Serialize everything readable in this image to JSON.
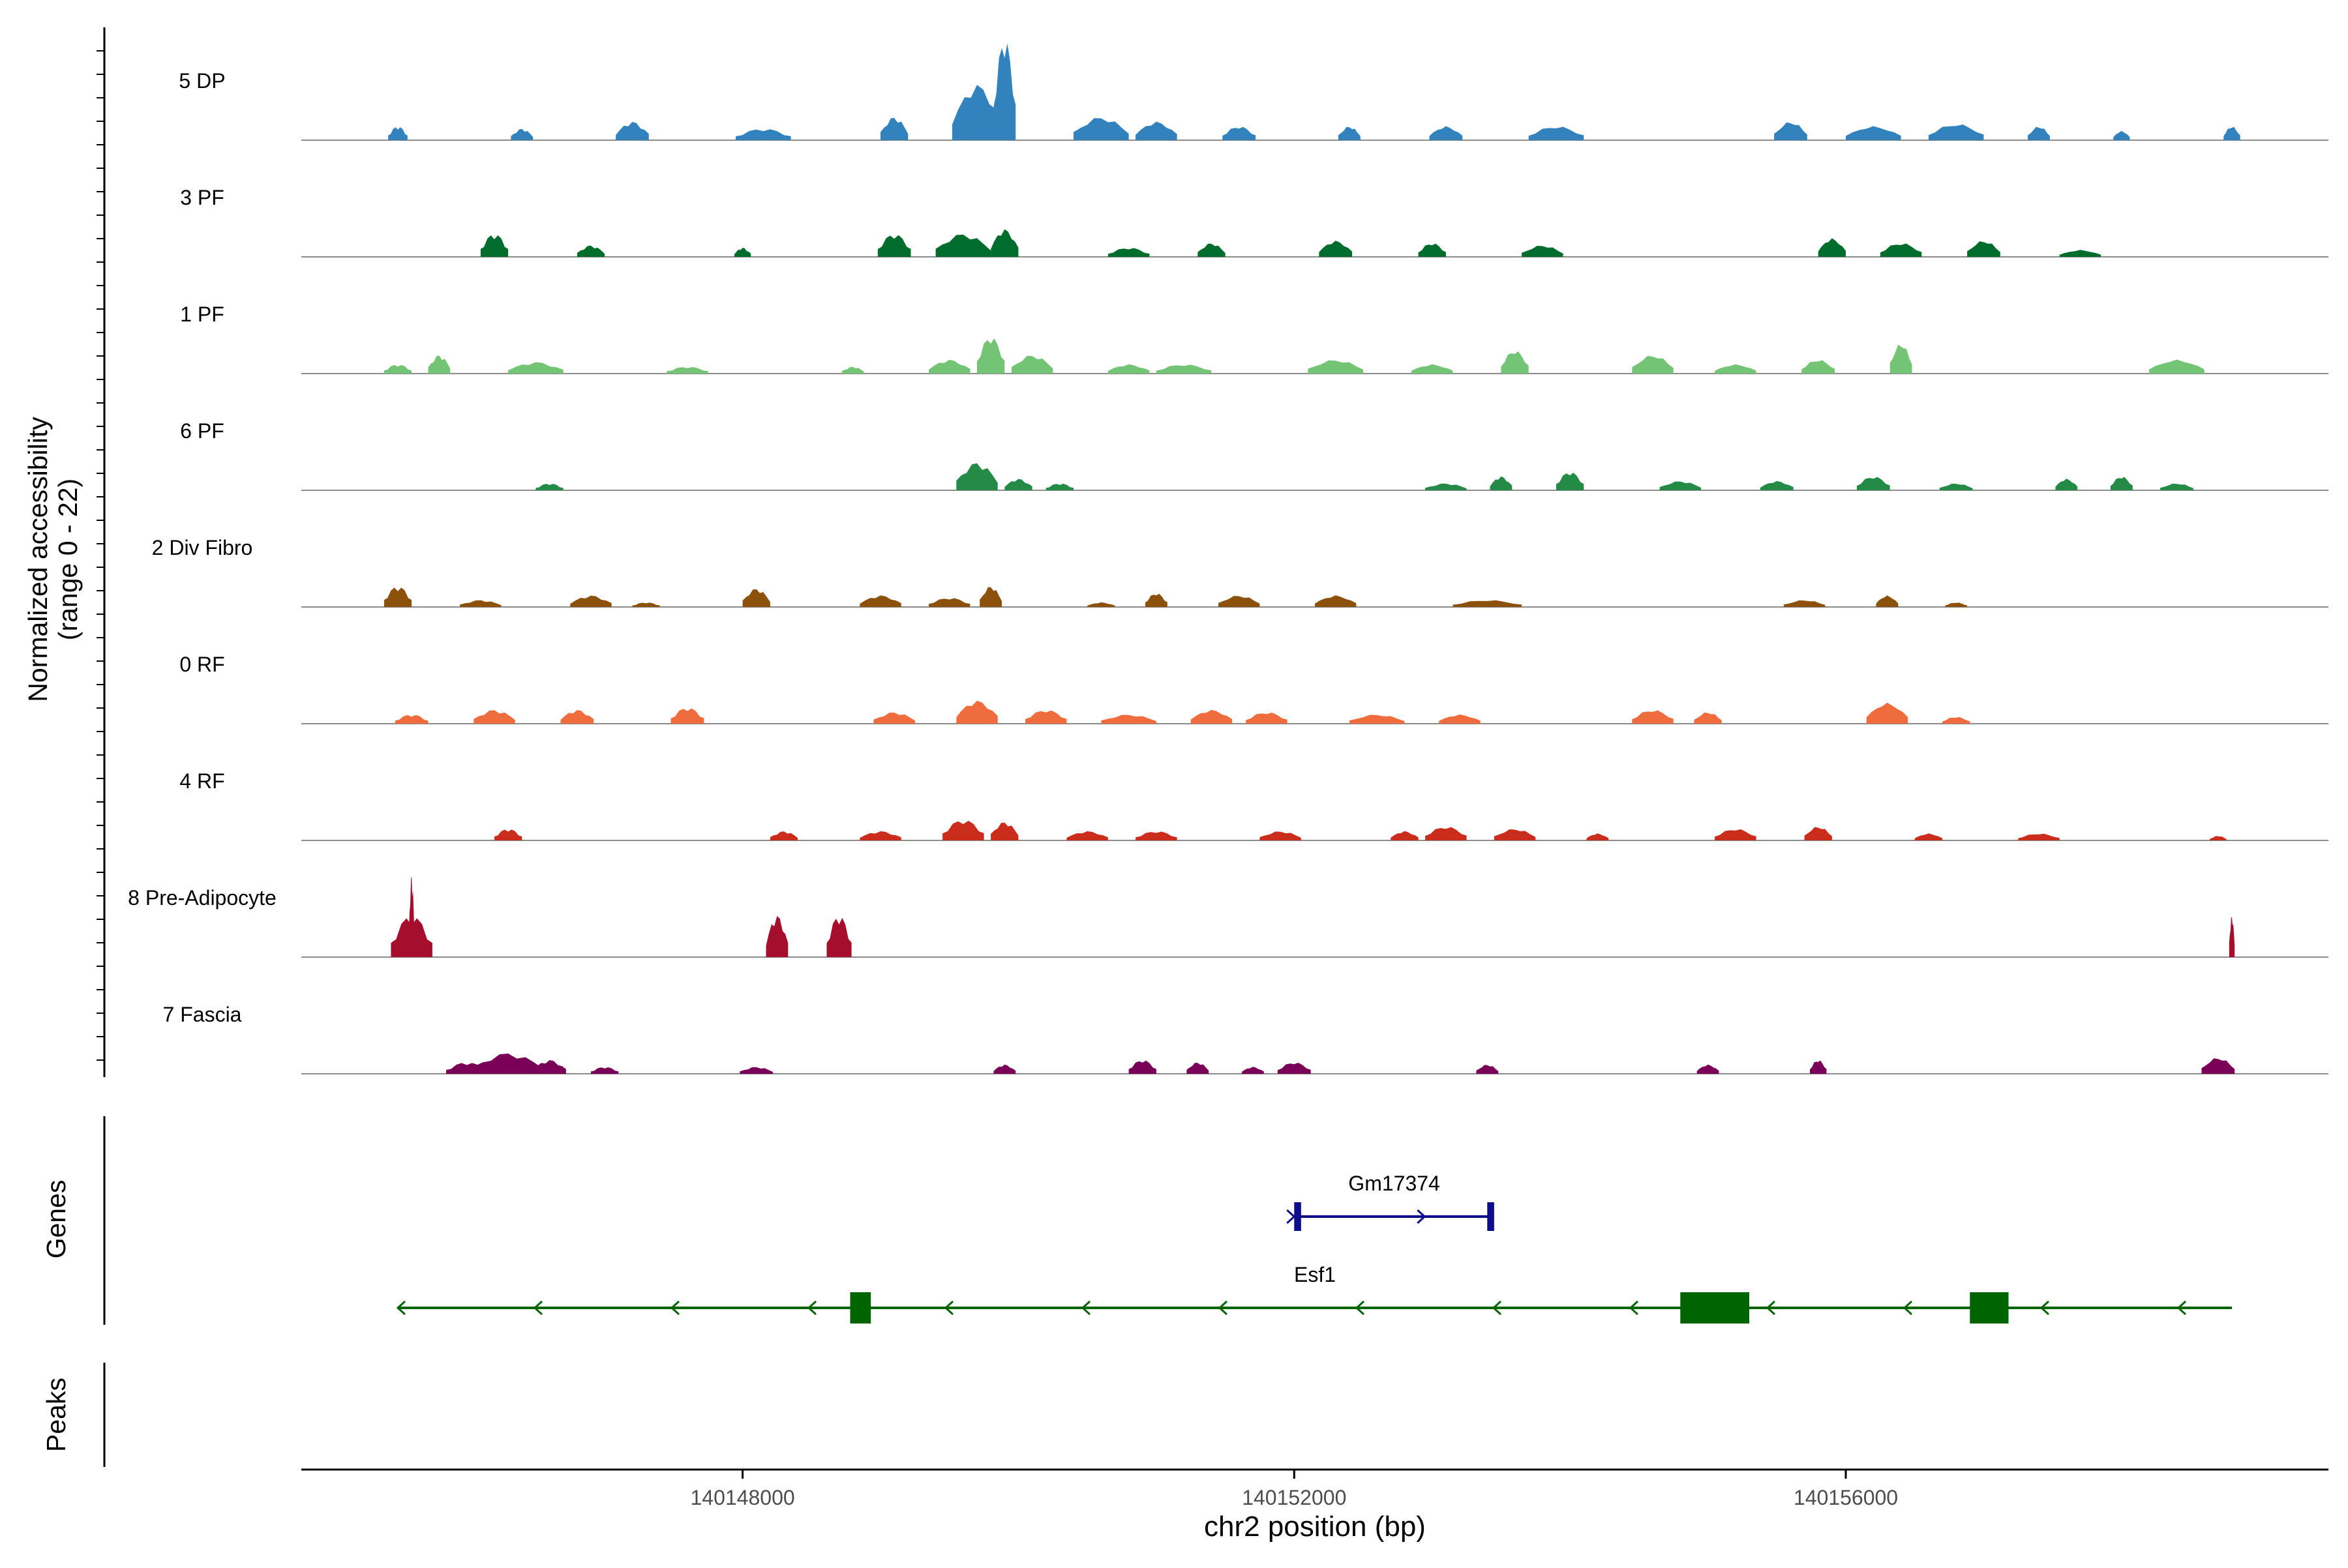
{
  "chart_data": {
    "type": "area",
    "title": "",
    "xlabel": "chr2 position (bp)",
    "ylabel_line1": "Normalized accessibility",
    "ylabel_line2": "(range 0 - 22)",
    "ylim": [
      0,
      22
    ],
    "xlim": [
      140144800,
      140159500
    ],
    "x_ticks": [
      140148000,
      140152000,
      140156000
    ],
    "x_tick_labels": [
      "140148000",
      "140152000",
      "140156000"
    ],
    "genes_panel_label": "Genes",
    "peaks_panel_label": "Peaks",
    "series": [
      {
        "name": "5 DP",
        "color": "#3182bd",
        "peaks": [
          [
            140145500,
            70,
            3
          ],
          [
            140146400,
            80,
            2.5
          ],
          [
            140147200,
            120,
            4
          ],
          [
            140148150,
            200,
            2.5
          ],
          [
            140149100,
            100,
            5
          ],
          [
            140149700,
            180,
            12
          ],
          [
            140149900,
            80,
            22
          ],
          [
            140150600,
            200,
            5
          ],
          [
            140151000,
            150,
            4
          ],
          [
            140151600,
            120,
            3
          ],
          [
            140152400,
            80,
            3
          ],
          [
            140153100,
            120,
            3
          ],
          [
            140153900,
            200,
            3
          ],
          [
            140155600,
            120,
            4
          ],
          [
            140156200,
            200,
            3
          ],
          [
            140156800,
            200,
            3.5
          ],
          [
            140157400,
            80,
            3
          ],
          [
            140158000,
            60,
            2
          ],
          [
            140158800,
            60,
            3
          ]
        ]
      },
      {
        "name": "3 PF",
        "color": "#006d2c",
        "peaks": [
          [
            140146200,
            100,
            5
          ],
          [
            140146900,
            100,
            2.5
          ],
          [
            140148000,
            60,
            2
          ],
          [
            140149100,
            120,
            5
          ],
          [
            140149600,
            200,
            5
          ],
          [
            140149900,
            100,
            6
          ],
          [
            140150800,
            150,
            2
          ],
          [
            140151400,
            100,
            3
          ],
          [
            140152300,
            120,
            3.5
          ],
          [
            140153000,
            100,
            3
          ],
          [
            140153800,
            150,
            2.5
          ],
          [
            140155900,
            100,
            4
          ],
          [
            140156400,
            150,
            3
          ],
          [
            140157000,
            120,
            3.5
          ],
          [
            140157700,
            150,
            1.5
          ]
        ]
      },
      {
        "name": "1 PF",
        "color": "#74c476",
        "peaks": [
          [
            140145500,
            100,
            2
          ],
          [
            140145800,
            80,
            4
          ],
          [
            140146500,
            200,
            2.5
          ],
          [
            140147600,
            150,
            1.5
          ],
          [
            140148800,
            80,
            1.5
          ],
          [
            140149500,
            150,
            3
          ],
          [
            140149800,
            100,
            8
          ],
          [
            140150100,
            150,
            4
          ],
          [
            140150800,
            150,
            2
          ],
          [
            140151200,
            200,
            2
          ],
          [
            140152300,
            200,
            3
          ],
          [
            140153000,
            150,
            2
          ],
          [
            140153600,
            100,
            5
          ],
          [
            140154600,
            150,
            4
          ],
          [
            140155200,
            150,
            2
          ],
          [
            140155800,
            120,
            3
          ],
          [
            140156400,
            80,
            6.5
          ],
          [
            140158400,
            200,
            3
          ]
        ]
      },
      {
        "name": "6 PF",
        "color": "#238b45",
        "peaks": [
          [
            140146600,
            100,
            1.5
          ],
          [
            140149700,
            150,
            6
          ],
          [
            140150000,
            100,
            2.5
          ],
          [
            140150300,
            100,
            1.5
          ],
          [
            140153100,
            150,
            1.5
          ],
          [
            140153500,
            80,
            3
          ],
          [
            140154000,
            100,
            4
          ],
          [
            140154800,
            150,
            2
          ],
          [
            140155500,
            120,
            2
          ],
          [
            140156200,
            120,
            3
          ],
          [
            140156800,
            120,
            1.5
          ],
          [
            140157600,
            80,
            2.5
          ],
          [
            140158000,
            80,
            3
          ],
          [
            140158400,
            120,
            1.5
          ]
        ]
      },
      {
        "name": "2 Div Fibro",
        "color": "#8c510a",
        "peaks": [
          [
            140145500,
            100,
            4.5
          ],
          [
            140146100,
            150,
            1.5
          ],
          [
            140146900,
            150,
            2.5
          ],
          [
            140147300,
            100,
            1
          ],
          [
            140148100,
            100,
            4
          ],
          [
            140149000,
            150,
            2.5
          ],
          [
            140149500,
            150,
            2
          ],
          [
            140149800,
            80,
            4.5
          ],
          [
            140150600,
            100,
            1
          ],
          [
            140151000,
            80,
            3
          ],
          [
            140151600,
            150,
            2.5
          ],
          [
            140152300,
            150,
            2.5
          ],
          [
            140153400,
            250,
            1.5
          ],
          [
            140155700,
            150,
            1.5
          ],
          [
            140156300,
            80,
            2.5
          ],
          [
            140156800,
            80,
            1
          ]
        ]
      },
      {
        "name": "0 RF",
        "color": "#ef6c3f",
        "peaks": [
          [
            140145600,
            120,
            2
          ],
          [
            140146200,
            150,
            3
          ],
          [
            140146800,
            120,
            3
          ],
          [
            140147600,
            120,
            3.5
          ],
          [
            140149100,
            150,
            2.5
          ],
          [
            140149700,
            150,
            5
          ],
          [
            140150200,
            150,
            3
          ],
          [
            140150800,
            200,
            2
          ],
          [
            140151400,
            150,
            3
          ],
          [
            140151800,
            150,
            2.5
          ],
          [
            140152600,
            200,
            2
          ],
          [
            140153200,
            150,
            2
          ],
          [
            140154600,
            150,
            3
          ],
          [
            140155000,
            100,
            2.5
          ],
          [
            140156300,
            150,
            4.5
          ],
          [
            140156800,
            100,
            1.5
          ]
        ]
      },
      {
        "name": "4 RF",
        "color": "#cb2d1d",
        "peaks": [
          [
            140146300,
            100,
            2.5
          ],
          [
            140148300,
            100,
            2
          ],
          [
            140149000,
            150,
            2
          ],
          [
            140149600,
            150,
            4.5
          ],
          [
            140149900,
            100,
            4
          ],
          [
            140150500,
            150,
            2
          ],
          [
            140151000,
            150,
            2
          ],
          [
            140151900,
            150,
            2
          ],
          [
            140152800,
            100,
            2
          ],
          [
            140153100,
            150,
            3
          ],
          [
            140153600,
            150,
            2.5
          ],
          [
            140154200,
            80,
            1.5
          ],
          [
            140155200,
            150,
            2.5
          ],
          [
            140155800,
            100,
            3
          ],
          [
            140156600,
            100,
            1.5
          ],
          [
            140157400,
            150,
            1.5
          ],
          [
            140158700,
            60,
            1
          ]
        ]
      },
      {
        "name": "8 Pre-Adipocyte",
        "color": "#a50f2d",
        "peaks": [
          [
            140145600,
            150,
            9
          ],
          [
            140145600,
            20,
            18
          ],
          [
            140148250,
            80,
            9
          ],
          [
            140148700,
            90,
            9
          ],
          [
            140158800,
            20,
            9
          ]
        ]
      },
      {
        "name": "7 Fascia",
        "color": "#7a0057",
        "peaks": [
          [
            140146000,
            150,
            2.5
          ],
          [
            140146300,
            250,
            4.5
          ],
          [
            140146600,
            120,
            3
          ],
          [
            140147000,
            100,
            1.5
          ],
          [
            140148100,
            120,
            1.5
          ],
          [
            140149900,
            80,
            2
          ],
          [
            140150900,
            100,
            3
          ],
          [
            140151300,
            80,
            2.5
          ],
          [
            140151700,
            80,
            1.5
          ],
          [
            140152000,
            120,
            2.5
          ],
          [
            140153400,
            80,
            2
          ],
          [
            140155000,
            80,
            2
          ],
          [
            140155800,
            60,
            3
          ],
          [
            140158700,
            120,
            3.5
          ]
        ]
      }
    ],
    "genes": [
      {
        "name": "Gm17374",
        "strand": "+",
        "start": 140152000,
        "end": 140153450,
        "color": "#0c0c8c",
        "exons": [
          [
            140152000,
            140152050
          ],
          [
            140153400,
            140153450
          ]
        ]
      },
      {
        "name": "Esf1",
        "strand": "-",
        "start": 140145500,
        "end": 140158800,
        "color": "#006400",
        "exons": [
          [
            140148780,
            140148930
          ],
          [
            140154800,
            140155300
          ],
          [
            140156900,
            140157180
          ]
        ]
      }
    ]
  }
}
